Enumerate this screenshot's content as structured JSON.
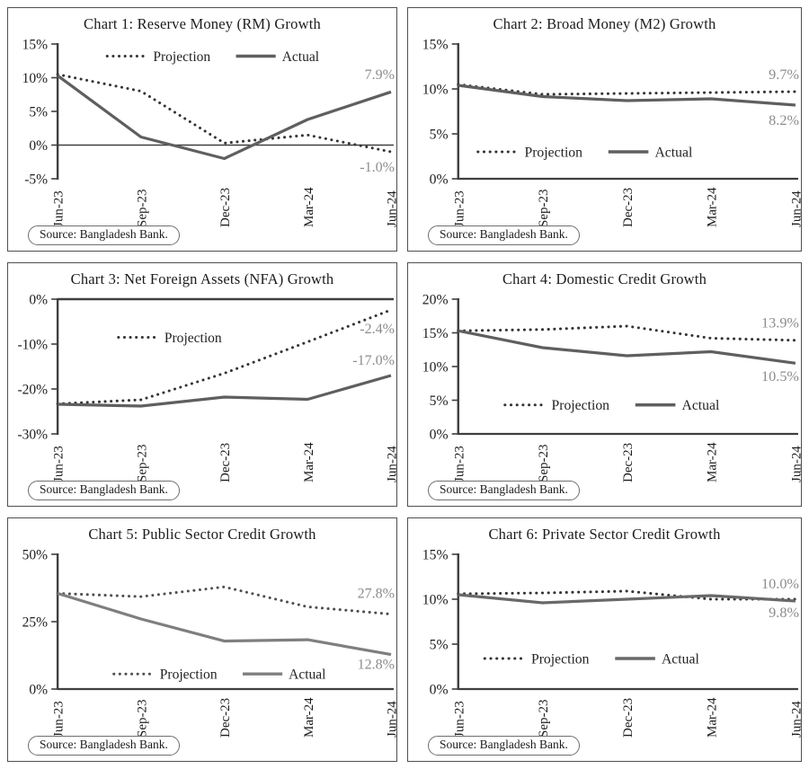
{
  "source_badge": "Source: Bangladesh Bank.",
  "colors": {
    "axis": "#3f3f3f",
    "tick_label": "#1c1c1c",
    "legend_text": "#222222",
    "end_label": "#8c8c8c",
    "panel_border": "#4f4f4f"
  },
  "chart_data": [
    {
      "type": "line",
      "title": "Chart 1: Reserve Money (RM) Growth",
      "x": [
        "Jun-23",
        "Sep-23",
        "Dec-23",
        "Mar-24",
        "Jun-24"
      ],
      "ylim": [
        -5,
        15
      ],
      "yticks": [
        "15%",
        "10%",
        "5%",
        "0%",
        "-5%"
      ],
      "ytick_values": [
        15,
        10,
        5,
        0,
        -5
      ],
      "zero_line_width": 1.6,
      "legend": {
        "items": [
          "Projection",
          "Actual"
        ],
        "y_value": 13.2,
        "x_frac": 0.47
      },
      "series": [
        {
          "name": "Projection",
          "style": "dotted",
          "color": "#343434",
          "values": [
            10.5,
            8.0,
            0.3,
            1.5,
            -1.0
          ],
          "end_label": "-1.0%",
          "label_dy": 22
        },
        {
          "name": "Actual",
          "style": "solid",
          "color": "#5f5f5f",
          "values": [
            10.3,
            1.2,
            -2.0,
            3.8,
            7.9
          ],
          "end_label": "7.9%",
          "label_dy": -14
        }
      ]
    },
    {
      "type": "line",
      "title": "Chart 2: Broad Money (M2) Growth",
      "x": [
        "Jun-23",
        "Sep-23",
        "Dec-23",
        "Mar-24",
        "Jun-24"
      ],
      "ylim": [
        0,
        15
      ],
      "yticks": [
        "15%",
        "10%",
        "5%",
        "0%"
      ],
      "ytick_values": [
        15,
        10,
        5,
        0
      ],
      "zero_line_width": 2.2,
      "legend": {
        "items": [
          "Projection",
          "Actual"
        ],
        "y_value": 3.0,
        "x_frac": 0.38
      },
      "series": [
        {
          "name": "Projection",
          "style": "dotted",
          "color": "#343434",
          "values": [
            10.5,
            9.4,
            9.5,
            9.6,
            9.7
          ],
          "end_label": "9.7%",
          "label_dy": -14
        },
        {
          "name": "Actual",
          "style": "solid",
          "color": "#5f5f5f",
          "values": [
            10.4,
            9.15,
            8.7,
            8.9,
            8.2
          ],
          "end_label": "8.2%",
          "label_dy": 22
        }
      ]
    },
    {
      "type": "line",
      "title": "Chart 3: Net Foreign Assets (NFA) Growth",
      "x": [
        "Jun-23",
        "Sep-23",
        "Dec-23",
        "Mar-24",
        "Jun-24"
      ],
      "ylim": [
        -30,
        0
      ],
      "yticks": [
        "0%",
        "-10%",
        "-20%",
        "-30%"
      ],
      "ytick_values": [
        0,
        -10,
        -20,
        -30
      ],
      "zero_line_width": 2.6,
      "legend": {
        "items": [
          "Projection"
        ],
        "y_value": -8.5,
        "x_frac": 0.35
      },
      "series": [
        {
          "name": "Projection",
          "style": "dotted",
          "color": "#343434",
          "values": [
            -23.3,
            -22.4,
            -16.5,
            -9.5,
            -2.4
          ],
          "end_label": "-2.4%",
          "label_dy": 26
        },
        {
          "name": "Actual",
          "style": "solid",
          "color": "#5f5f5f",
          "values": [
            -23.4,
            -23.8,
            -21.8,
            -22.3,
            -17.0
          ],
          "end_label": "-17.0%",
          "label_dy": -12
        }
      ]
    },
    {
      "type": "line",
      "title": "Chart 4: Domestic Credit Growth",
      "x": [
        "Jun-23",
        "Sep-23",
        "Dec-23",
        "Mar-24",
        "Jun-24"
      ],
      "ylim": [
        0,
        20
      ],
      "yticks": [
        "20%",
        "15%",
        "10%",
        "5%",
        "0%"
      ],
      "ytick_values": [
        20,
        15,
        10,
        5,
        0
      ],
      "zero_line_width": 2.2,
      "legend": {
        "items": [
          "Projection",
          "Actual"
        ],
        "y_value": 4.3,
        "x_frac": 0.46
      },
      "series": [
        {
          "name": "Projection",
          "style": "dotted",
          "color": "#343434",
          "values": [
            15.3,
            15.5,
            16.0,
            14.2,
            13.9
          ],
          "end_label": "13.9%",
          "label_dy": -14
        },
        {
          "name": "Actual",
          "style": "solid",
          "color": "#5f5f5f",
          "values": [
            15.3,
            12.8,
            11.6,
            12.2,
            10.5
          ],
          "end_label": "10.5%",
          "label_dy": 20
        }
      ]
    },
    {
      "type": "line",
      "title": "Chart 5: Public Sector Credit Growth",
      "x": [
        "Jun-23",
        "Sep-23",
        "Dec-23",
        "Mar-24",
        "Jun-24"
      ],
      "ylim": [
        0,
        50
      ],
      "yticks": [
        "50%",
        "25%",
        "0%"
      ],
      "ytick_values": [
        50,
        25,
        0
      ],
      "zero_line_width": 2.2,
      "legend": {
        "items": [
          "Projection",
          "Actual"
        ],
        "y_value": 5.6,
        "x_frac": 0.49
      },
      "series": [
        {
          "name": "Projection",
          "style": "dotted",
          "color": "#4f4f4f",
          "values": [
            35.5,
            34.3,
            37.9,
            30.5,
            27.8
          ],
          "end_label": "27.8%",
          "label_dy": -18
        },
        {
          "name": "Actual",
          "style": "solid",
          "color": "#7f7f7f",
          "values": [
            35.5,
            26.0,
            17.8,
            18.3,
            12.8
          ],
          "end_label": "12.8%",
          "label_dy": 16
        }
      ]
    },
    {
      "type": "line",
      "title": "Chart 6: Private Sector Credit Growth",
      "x": [
        "Jun-23",
        "Sep-23",
        "Dec-23",
        "Mar-24",
        "Jun-24"
      ],
      "ylim": [
        0,
        15
      ],
      "yticks": [
        "15%",
        "10%",
        "5%",
        "0%"
      ],
      "ytick_values": [
        15,
        10,
        5,
        0
      ],
      "zero_line_width": 2.2,
      "legend": {
        "items": [
          "Projection",
          "Actual"
        ],
        "y_value": 3.4,
        "x_frac": 0.4
      },
      "series": [
        {
          "name": "Projection",
          "style": "dotted",
          "color": "#343434",
          "values": [
            10.6,
            10.7,
            10.9,
            10.0,
            10.0
          ],
          "end_label": "10.0%",
          "label_dy": -12
        },
        {
          "name": "Actual",
          "style": "solid",
          "color": "#696969",
          "values": [
            10.5,
            9.6,
            10.0,
            10.4,
            9.8
          ],
          "end_label": "9.8%",
          "label_dy": 18
        }
      ]
    }
  ]
}
